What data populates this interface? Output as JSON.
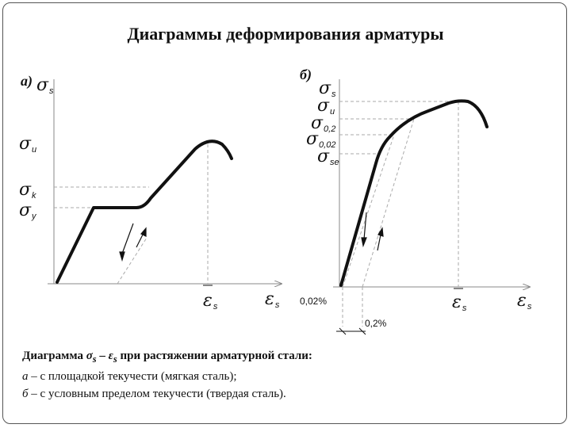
{
  "title": "Диаграммы деформирования арматуры",
  "panels": [
    {
      "label": "а)",
      "y_axis_symbol": "σ",
      "y_axis_sub": "s",
      "x_axis_symbol": "ε",
      "x_axis_sub": "s",
      "marker_symbol": "ε",
      "marker_sub": "s",
      "levels": [
        {
          "symbol": "σ",
          "sub": "u"
        },
        {
          "symbol": "σ",
          "sub": "k"
        },
        {
          "symbol": "σ",
          "sub": "y"
        }
      ]
    },
    {
      "label": "б)",
      "y_axis_symbol": "σ",
      "y_axis_sub": "s",
      "x_axis_symbol": "ε",
      "x_axis_sub": "s",
      "marker_symbol": "ε",
      "marker_sub": "s",
      "levels": [
        {
          "symbol": "σ",
          "sub": "u"
        },
        {
          "symbol": "σ",
          "sub": "0,2"
        },
        {
          "symbol": "σ",
          "sub": "0,02"
        },
        {
          "symbol": "σ",
          "sub": "se"
        }
      ],
      "offset_labels": [
        "0,02%",
        "0,2%"
      ]
    }
  ],
  "caption": {
    "head_prefix": "Диаграмма ",
    "head_sigma": "σ",
    "head_sigma_sub": "s",
    "head_dash": " – ",
    "head_eps": "ε",
    "head_eps_sub": "s",
    "head_suffix": " при растяжении арматурной стали:",
    "item_a_letter": "а",
    "item_a_text": " – с площадкой текучести (мягкая сталь);",
    "item_b_letter": "б",
    "item_b_text": " – с условным пределом текучести (твердая сталь)."
  },
  "colors": {
    "curve": "#111111",
    "guide": "#aaaaaa",
    "axis": "#888888"
  }
}
